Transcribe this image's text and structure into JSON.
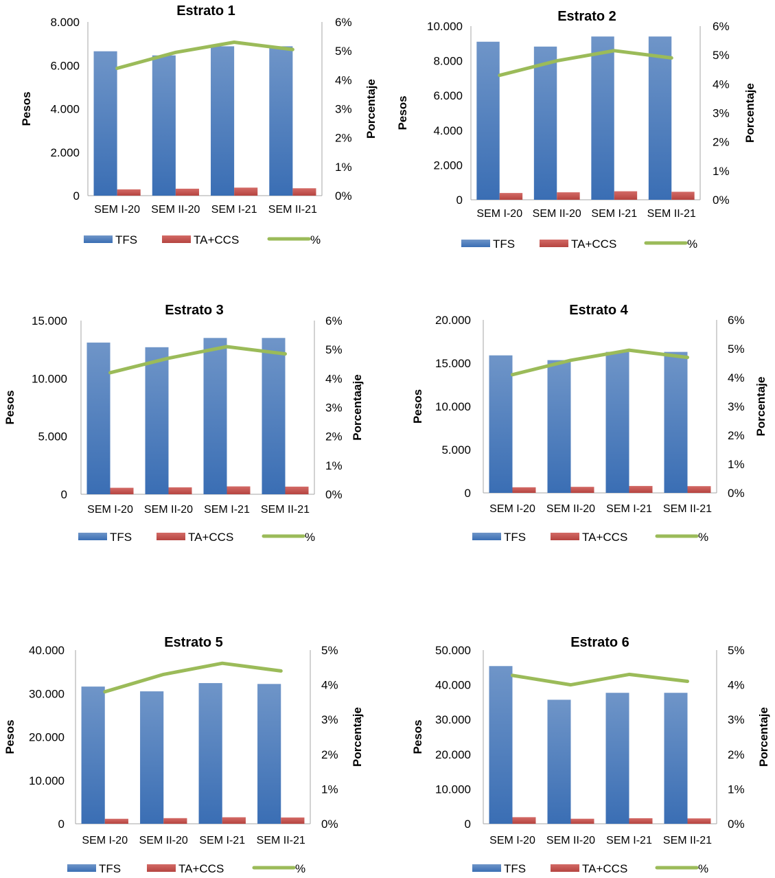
{
  "chart_data": [
    {
      "type": "bar",
      "title": "Estrato 1",
      "ylabel": "Pesos",
      "y2label": "Porcentaje",
      "categories": [
        "SEM I-20",
        "SEM II-20",
        "SEM I-21",
        "SEM II-21"
      ],
      "ylim": [
        0,
        8000
      ],
      "yticks": [
        "0",
        "2.000",
        "4.000",
        "6.000",
        "8.000"
      ],
      "y2lim": [
        0,
        6
      ],
      "y2ticks": [
        "0%",
        "1%",
        "2%",
        "3%",
        "4%",
        "5%",
        "6%"
      ],
      "series": [
        {
          "name": "TFS",
          "kind": "bar",
          "color": "#4f81bd",
          "values": [
            6650,
            6460,
            6880,
            6880
          ]
        },
        {
          "name": "TA+CCS",
          "kind": "bar",
          "color": "#c0504d",
          "values": [
            290,
            320,
            370,
            340
          ]
        },
        {
          "name": "%",
          "kind": "line",
          "color": "#9bbb59",
          "values": [
            4.4,
            4.95,
            5.3,
            5.05
          ]
        }
      ],
      "legend": "bottom"
    },
    {
      "type": "bar",
      "title": "Estrato 2",
      "ylabel": "Pesos",
      "y2label": "Porcentaje",
      "categories": [
        "SEM I-20",
        "SEM II-20",
        "SEM I-21",
        "SEM II-21"
      ],
      "ylim": [
        0,
        10000
      ],
      "yticks": [
        "0",
        "2.000",
        "4.000",
        "6.000",
        "8.000",
        "10.000"
      ],
      "y2lim": [
        0,
        6
      ],
      "y2ticks": [
        "0%",
        "1%",
        "2%",
        "3%",
        "4%",
        "5%",
        "6%"
      ],
      "series": [
        {
          "name": "TFS",
          "kind": "bar",
          "color": "#4f81bd",
          "values": [
            9100,
            8820,
            9400,
            9400
          ]
        },
        {
          "name": "TA+CCS",
          "kind": "bar",
          "color": "#c0504d",
          "values": [
            390,
            430,
            490,
            460
          ]
        },
        {
          "name": "%",
          "kind": "line",
          "color": "#9bbb59",
          "values": [
            4.3,
            4.8,
            5.15,
            4.9
          ]
        }
      ],
      "legend": "bottom"
    },
    {
      "type": "bar",
      "title": "Estrato 3",
      "ylabel": "Pesos",
      "y2label": "Porcentaaje",
      "categories": [
        "SEM I-20",
        "SEM II-20",
        "SEM I-21",
        "SEM II-21"
      ],
      "ylim": [
        0,
        15000
      ],
      "yticks": [
        "0",
        "5.000",
        "10.000",
        "15.000"
      ],
      "y2lim": [
        0,
        6
      ],
      "y2ticks": [
        "0%",
        "1%",
        "2%",
        "3%",
        "4%",
        "5%",
        "6%"
      ],
      "series": [
        {
          "name": "TFS",
          "kind": "bar",
          "color": "#4f81bd",
          "values": [
            13100,
            12700,
            13500,
            13500
          ]
        },
        {
          "name": "TA+CCS",
          "kind": "bar",
          "color": "#c0504d",
          "values": [
            560,
            600,
            680,
            660
          ]
        },
        {
          "name": "%",
          "kind": "line",
          "color": "#9bbb59",
          "values": [
            4.2,
            4.7,
            5.1,
            4.85
          ]
        }
      ],
      "legend": "bottom"
    },
    {
      "type": "bar",
      "title": "Estrato 4",
      "ylabel": "Pesos",
      "y2label": "Porcentaje",
      "categories": [
        "SEM I-20",
        "SEM II-20",
        "SEM I-21",
        "SEM II-21"
      ],
      "ylim": [
        0,
        20000
      ],
      "yticks": [
        "0",
        "5.000",
        "10.000",
        "15.000",
        "20.000"
      ],
      "y2lim": [
        0,
        6
      ],
      "y2ticks": [
        "0%",
        "1%",
        "2%",
        "3%",
        "4%",
        "5%",
        "6%"
      ],
      "series": [
        {
          "name": "TFS",
          "kind": "bar",
          "color": "#4f81bd",
          "values": [
            15900,
            15350,
            16300,
            16300
          ]
        },
        {
          "name": "TA+CCS",
          "kind": "bar",
          "color": "#c0504d",
          "values": [
            650,
            700,
            800,
            780
          ]
        },
        {
          "name": "%",
          "kind": "line",
          "color": "#9bbb59",
          "values": [
            4.1,
            4.6,
            4.95,
            4.7
          ]
        }
      ],
      "legend": "bottom"
    },
    {
      "type": "bar",
      "title": "Estrato 5",
      "ylabel": "Pesos",
      "y2label": "Porcentaje",
      "categories": [
        "SEM I-20",
        "SEM II-20",
        "SEM I-21",
        "SEM II-21"
      ],
      "ylim": [
        0,
        40000
      ],
      "yticks": [
        "0",
        "10.000",
        "20.000",
        "30.000",
        "40.000"
      ],
      "y2lim": [
        0,
        5
      ],
      "y2ticks": [
        "0%",
        "1%",
        "2%",
        "3%",
        "4%",
        "5%"
      ],
      "series": [
        {
          "name": "TFS",
          "kind": "bar",
          "color": "#4f81bd",
          "values": [
            31600,
            30500,
            32400,
            32200
          ]
        },
        {
          "name": "TA+CCS",
          "kind": "bar",
          "color": "#c0504d",
          "values": [
            1150,
            1300,
            1500,
            1450
          ]
        },
        {
          "name": "%",
          "kind": "line",
          "color": "#9bbb59",
          "values": [
            3.8,
            4.3,
            4.62,
            4.4
          ]
        }
      ],
      "legend": "bottom"
    },
    {
      "type": "bar",
      "title": "Estrato 6",
      "ylabel": "Pesos",
      "y2label": "Porcentaje",
      "categories": [
        "SEM I-20",
        "SEM II-20",
        "SEM I-21",
        "SEM II-21"
      ],
      "ylim": [
        0,
        50000
      ],
      "yticks": [
        "0",
        "10.000",
        "20.000",
        "30.000",
        "40.000",
        "50.000"
      ],
      "y2lim": [
        0,
        5
      ],
      "y2ticks": [
        "0%",
        "1%",
        "2%",
        "3%",
        "4%",
        "5%"
      ],
      "series": [
        {
          "name": "TFS",
          "kind": "bar",
          "color": "#4f81bd",
          "values": [
            45400,
            35700,
            37700,
            37700
          ]
        },
        {
          "name": "TA+CCS",
          "kind": "bar",
          "color": "#c0504d",
          "values": [
            1900,
            1450,
            1600,
            1550
          ]
        },
        {
          "name": "%",
          "kind": "line",
          "color": "#9bbb59",
          "values": [
            4.27,
            4.0,
            4.3,
            4.1
          ]
        }
      ],
      "legend": "bottom"
    }
  ]
}
